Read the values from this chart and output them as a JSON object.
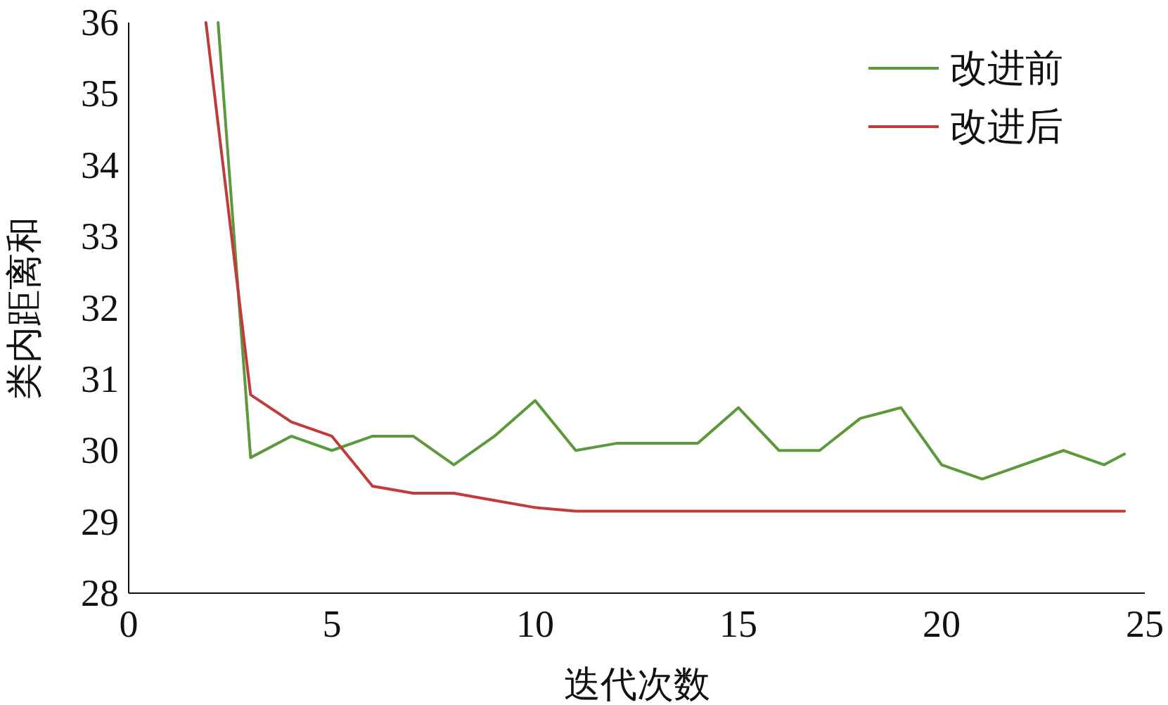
{
  "chart_data": {
    "type": "line",
    "xlabel": "迭代次数",
    "ylabel": "类内距离和",
    "xlim": [
      0,
      25
    ],
    "ylim": [
      28,
      36
    ],
    "xticks": [
      0,
      5,
      10,
      15,
      20,
      25
    ],
    "yticks": [
      28,
      29,
      30,
      31,
      32,
      33,
      34,
      35,
      36
    ],
    "legend": "top right",
    "series": [
      {
        "name": "改进前",
        "color": "#5b9a3c",
        "x": [
          2.2,
          3,
          4,
          5,
          6,
          7,
          8,
          9,
          10,
          11,
          12,
          13,
          14,
          15,
          16,
          17,
          18,
          19,
          20,
          21,
          22,
          23,
          24,
          24.5
        ],
        "values": [
          36,
          29.9,
          30.2,
          30,
          30.2,
          30.2,
          29.8,
          30.2,
          30.7,
          30,
          30.1,
          30.1,
          30.1,
          30.6,
          30,
          30,
          30.45,
          30.6,
          29.8,
          29.6,
          29.8,
          30,
          29.8,
          29.95
        ]
      },
      {
        "name": "改进后",
        "color": "#c23b3b",
        "x": [
          1.9,
          3,
          4,
          5,
          6,
          7,
          8,
          9,
          10,
          11,
          12,
          13,
          14,
          15,
          16,
          17,
          18,
          19,
          20,
          21,
          22,
          23,
          24,
          24.5
        ],
        "values": [
          36,
          30.78,
          30.4,
          30.2,
          29.5,
          29.4,
          29.4,
          29.3,
          29.2,
          29.15,
          29.15,
          29.15,
          29.15,
          29.15,
          29.15,
          29.15,
          29.15,
          29.15,
          29.15,
          29.15,
          29.15,
          29.15,
          29.15,
          29.15
        ]
      }
    ]
  }
}
